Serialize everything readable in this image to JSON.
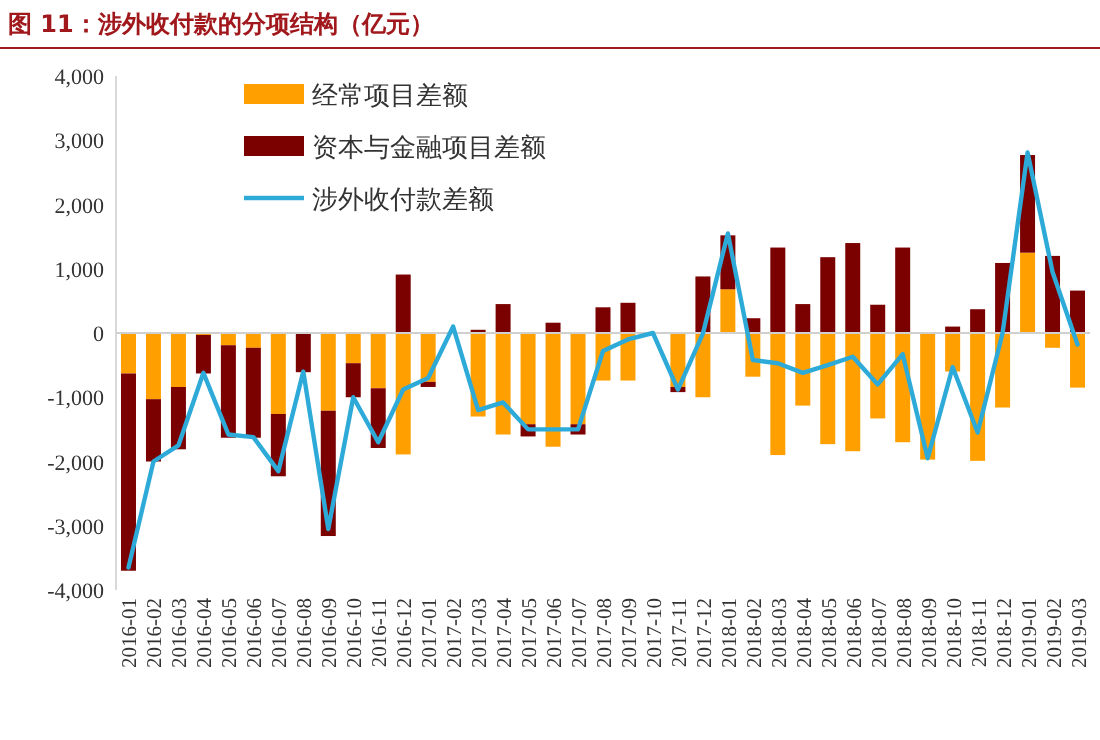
{
  "chart_data": {
    "type": "bar",
    "title": "图 11：涉外收付款的分项结构（亿元）",
    "categories": [
      "2016-01",
      "2016-02",
      "2016-03",
      "2016-04",
      "2016-05",
      "2016-06",
      "2016-07",
      "2016-08",
      "2016-09",
      "2016-10",
      "2016-11",
      "2016-12",
      "2017-01",
      "2017-02",
      "2017-03",
      "2017-04",
      "2017-05",
      "2017-06",
      "2017-07",
      "2017-08",
      "2017-09",
      "2017-10",
      "2017-11",
      "2017-12",
      "2018-01",
      "2018-02",
      "2018-03",
      "2018-04",
      "2018-05",
      "2018-06",
      "2018-07",
      "2018-08",
      "2018-09",
      "2018-10",
      "2018-11",
      "2018-12",
      "2019-01",
      "2019-02",
      "2019-03"
    ],
    "stacked": true,
    "series": [
      {
        "name": "经常项目差额",
        "color": "#ffa000",
        "values": [
          -630,
          -1030,
          -840,
          -30,
          -190,
          -230,
          -1260,
          null,
          -1210,
          -470,
          -860,
          -1890,
          -760,
          null,
          -1300,
          -1580,
          -1420,
          -1770,
          -1420,
          -740,
          -740,
          0,
          -840,
          -1000,
          680,
          -680,
          -1900,
          -1130,
          -1730,
          -1840,
          -1330,
          -1700,
          -1970,
          -600,
          -1990,
          -1160,
          1250,
          -230,
          -850
        ]
      },
      {
        "name": "资本与金融项目差额",
        "color": "#7b0000",
        "values": [
          -3070,
          -970,
          -970,
          -600,
          -1440,
          -1400,
          -970,
          -610,
          -1950,
          -530,
          -930,
          910,
          -80,
          null,
          50,
          450,
          -190,
          160,
          -160,
          400,
          470,
          0,
          -80,
          880,
          840,
          230,
          1330,
          450,
          1180,
          1400,
          440,
          1330,
          0,
          100,
          370,
          1090,
          1520,
          1200,
          660
        ]
      },
      {
        "name": "涉外收付款差额",
        "type": "line",
        "color": "#2eaad8",
        "values": [
          -3650,
          -2000,
          -1750,
          -620,
          -1580,
          -1620,
          -2150,
          -600,
          -3050,
          -1000,
          -1700,
          -880,
          -700,
          100,
          -1200,
          -1080,
          -1500,
          -1500,
          -1500,
          -280,
          -100,
          0,
          -880,
          -10,
          1550,
          -420,
          -470,
          -620,
          -500,
          -370,
          -800,
          -330,
          -1950,
          -530,
          -1550,
          0,
          2810,
          950,
          -180
        ]
      }
    ],
    "ylim": [
      -4000,
      4000
    ],
    "yticks": [
      {
        "value": -4000,
        "label": "-4,000"
      },
      {
        "value": -3000,
        "label": "-3,000"
      },
      {
        "value": -2000,
        "label": "-2,000"
      },
      {
        "value": -1000,
        "label": "-1,000"
      },
      0,
      {
        "value": 1000,
        "label": "1,000"
      },
      {
        "value": 2000,
        "label": "2,000"
      },
      {
        "value": 3000,
        "label": "3,000"
      },
      {
        "value": 4000,
        "label": "4,000"
      }
    ],
    "legend": "top left"
  }
}
